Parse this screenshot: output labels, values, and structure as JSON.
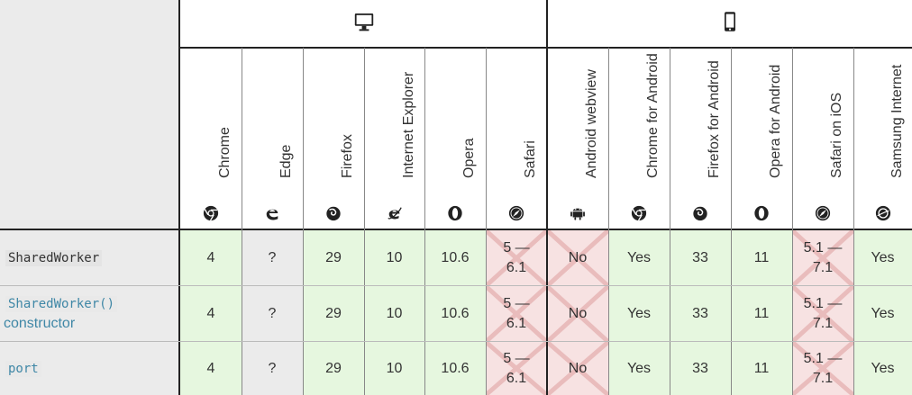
{
  "platforms": {
    "desktop": "desktop-icon",
    "mobile": "mobile-icon"
  },
  "browsers": [
    {
      "name": "Chrome",
      "icon": "chrome-icon"
    },
    {
      "name": "Edge",
      "icon": "edge-icon"
    },
    {
      "name": "Firefox",
      "icon": "firefox-icon"
    },
    {
      "name": "Internet Explorer",
      "icon": "ie-icon"
    },
    {
      "name": "Opera",
      "icon": "opera-icon"
    },
    {
      "name": "Safari",
      "icon": "safari-icon"
    },
    {
      "name": "Android webview",
      "icon": "android-icon"
    },
    {
      "name": "Chrome for Android",
      "icon": "chrome-icon"
    },
    {
      "name": "Firefox for Android",
      "icon": "firefox-icon"
    },
    {
      "name": "Opera for Android",
      "icon": "opera-icon"
    },
    {
      "name": "Safari on iOS",
      "icon": "safari-icon"
    },
    {
      "name": "Samsung Internet",
      "icon": "samsung-icon"
    }
  ],
  "rows": [
    {
      "feature": {
        "code": "SharedWorker",
        "text": "",
        "link": false
      },
      "support": [
        {
          "value": "4",
          "status": "yes"
        },
        {
          "value": "?",
          "status": "unknown"
        },
        {
          "value": "29",
          "status": "yes"
        },
        {
          "value": "10",
          "status": "yes"
        },
        {
          "value": "10.6",
          "status": "yes"
        },
        {
          "value": "5 — 6.1",
          "status": "no"
        },
        {
          "value": "No",
          "status": "no"
        },
        {
          "value": "Yes",
          "status": "yes"
        },
        {
          "value": "33",
          "status": "yes"
        },
        {
          "value": "11",
          "status": "yes"
        },
        {
          "value": "5.1 — 7.1",
          "status": "no"
        },
        {
          "value": "Yes",
          "status": "yes"
        }
      ]
    },
    {
      "feature": {
        "code": "SharedWorker()",
        "text": "constructor",
        "link": true
      },
      "support": [
        {
          "value": "4",
          "status": "yes"
        },
        {
          "value": "?",
          "status": "unknown"
        },
        {
          "value": "29",
          "status": "yes"
        },
        {
          "value": "10",
          "status": "yes"
        },
        {
          "value": "10.6",
          "status": "yes"
        },
        {
          "value": "5 — 6.1",
          "status": "no"
        },
        {
          "value": "No",
          "status": "no"
        },
        {
          "value": "Yes",
          "status": "yes"
        },
        {
          "value": "33",
          "status": "yes"
        },
        {
          "value": "11",
          "status": "yes"
        },
        {
          "value": "5.1 — 7.1",
          "status": "no"
        },
        {
          "value": "Yes",
          "status": "yes"
        }
      ]
    },
    {
      "feature": {
        "code": "port",
        "text": "",
        "link": true
      },
      "support": [
        {
          "value": "4",
          "status": "yes"
        },
        {
          "value": "?",
          "status": "unknown"
        },
        {
          "value": "29",
          "status": "yes"
        },
        {
          "value": "10",
          "status": "yes"
        },
        {
          "value": "10.6",
          "status": "yes"
        },
        {
          "value": "5 — 6.1",
          "status": "no"
        },
        {
          "value": "No",
          "status": "no"
        },
        {
          "value": "Yes",
          "status": "yes"
        },
        {
          "value": "33",
          "status": "yes"
        },
        {
          "value": "11",
          "status": "yes"
        },
        {
          "value": "5.1 — 7.1",
          "status": "no"
        },
        {
          "value": "Yes",
          "status": "yes"
        }
      ]
    }
  ],
  "colors": {
    "supported": "#e6f7df",
    "unsupported": "#f7e2e2",
    "unknown": "#ebebeb",
    "x_mark": "#e9bcbc",
    "link": "#3f87a6"
  }
}
